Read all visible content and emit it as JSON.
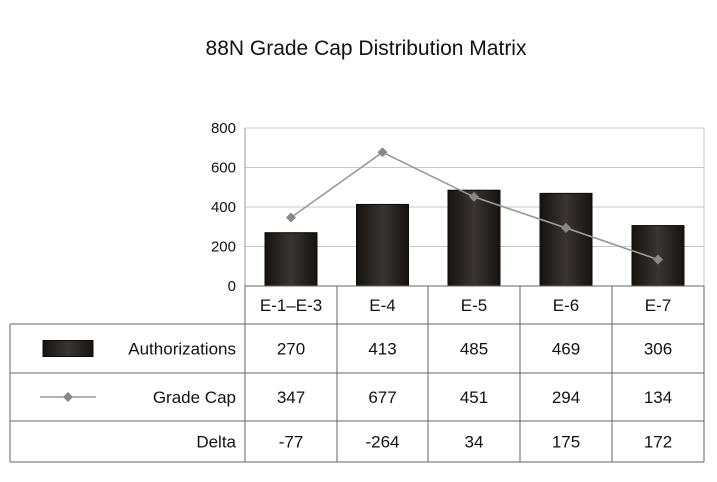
{
  "chart_data": {
    "type": "bar",
    "title": "88N Grade Cap Distribution Matrix",
    "categories": [
      "E-1–E-3",
      "E-4",
      "E-5",
      "E-6",
      "E-7"
    ],
    "series": [
      {
        "name": "Authorizations",
        "kind": "bar",
        "color": "#2a2624",
        "values": [
          270,
          413,
          485,
          469,
          306
        ]
      },
      {
        "name": "Grade Cap",
        "kind": "line",
        "color": "#999999",
        "values": [
          347,
          677,
          451,
          294,
          134
        ]
      }
    ],
    "table_rows": [
      {
        "label": "Authorizations",
        "legend": "bar",
        "values": [
          "270",
          "413",
          "485",
          "469",
          "306"
        ]
      },
      {
        "label": "Grade Cap",
        "legend": "line",
        "values": [
          "347",
          "677",
          "451",
          "294",
          "134"
        ]
      },
      {
        "label": "Delta",
        "legend": "none",
        "values": [
          "-77",
          "-264",
          "34",
          "175",
          "172"
        ]
      }
    ],
    "ylim": [
      0,
      800
    ],
    "yticks": [
      0,
      200,
      400,
      600,
      800
    ],
    "grid": true,
    "legend": "data table"
  }
}
